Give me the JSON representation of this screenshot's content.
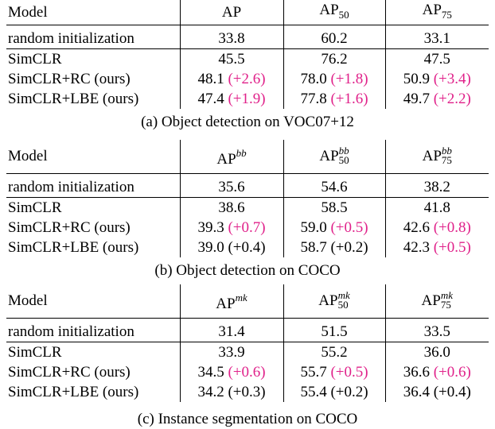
{
  "tables": [
    {
      "header": {
        "model": "Model",
        "c1": "AP",
        "c2_base": "AP",
        "c2_sub": "50",
        "c3_base": "AP",
        "c3_sub": "75"
      },
      "rows": [
        {
          "model": "random initialization",
          "c1": "33.8",
          "c1d": "",
          "c2": "60.2",
          "c2d": "",
          "c3": "33.1",
          "c3d": ""
        },
        {
          "model": "SimCLR",
          "c1": "45.5",
          "c1d": "",
          "c2": "76.2",
          "c2d": "",
          "c3": "47.5",
          "c3d": ""
        },
        {
          "model": "SimCLR+RC (ours)",
          "c1": "48.1",
          "c1d": "(+2.6)",
          "c2": "78.0",
          "c2d": "(+1.8)",
          "c3": "50.9",
          "c3d": "(+3.4)"
        },
        {
          "model": "SimCLR+LBE (ours)",
          "c1": "47.4",
          "c1d": "(+1.9)",
          "c2": "77.8",
          "c2d": "(+1.6)",
          "c3": "49.7",
          "c3d": "(+2.2)"
        }
      ],
      "caption": "(a) Object detection on VOC07+12"
    },
    {
      "header": {
        "model": "Model",
        "c1_base": "AP",
        "c1_sup": "bb",
        "c2_base": "AP",
        "c2_sup": "bb",
        "c2_sub": "50",
        "c3_base": "AP",
        "c3_sup": "bb",
        "c3_sub": "75"
      },
      "rows": [
        {
          "model": "random initialization",
          "c1": "35.6",
          "c1d": "",
          "c2": "54.6",
          "c2d": "",
          "c3": "38.2",
          "c3d": ""
        },
        {
          "model": "SimCLR",
          "c1": "38.6",
          "c1d": "",
          "c2": "58.5",
          "c2d": "",
          "c3": "41.8",
          "c3d": ""
        },
        {
          "model": "SimCLR+RC (ours)",
          "c1": "39.3",
          "c1d": "(+0.7)",
          "c2": "59.0",
          "c2d": "(+0.5)",
          "c3": "42.6",
          "c3d": "(+0.8)"
        },
        {
          "model": "SimCLR+LBE (ours)",
          "c1": "39.0",
          "c1d": "(+0.4)",
          "c2": "58.7",
          "c2d": "(+0.2)",
          "c3": "42.3",
          "c3d": "(+0.5)"
        }
      ],
      "caption": "(b) Object detection on COCO"
    },
    {
      "header": {
        "model": "Model",
        "c1_base": "AP",
        "c1_sup": "mk",
        "c2_base": "AP",
        "c2_sup": "mk",
        "c2_sub": "50",
        "c3_base": "AP",
        "c3_sup": "mk",
        "c3_sub": "75"
      },
      "rows": [
        {
          "model": "random initialization",
          "c1": "31.4",
          "c1d": "",
          "c2": "51.5",
          "c2d": "",
          "c3": "33.5",
          "c3d": ""
        },
        {
          "model": "SimCLR",
          "c1": "33.9",
          "c1d": "",
          "c2": "55.2",
          "c2d": "",
          "c3": "36.0",
          "c3d": ""
        },
        {
          "model": "SimCLR+RC (ours)",
          "c1": "34.5",
          "c1d": "(+0.6)",
          "c2": "55.7",
          "c2d": "(+0.5)",
          "c3": "36.6",
          "c3d": "(+0.6)"
        },
        {
          "model": "SimCLR+LBE (ours)",
          "c1": "34.2",
          "c1d": "(+0.3)",
          "c2": "55.4",
          "c2d": "(+0.2)",
          "c3": "36.4",
          "c3d": "(+0.4)"
        }
      ],
      "caption": "(c) Instance segmentation on COCO"
    }
  ],
  "colors": {
    "highlight": "#e0218a",
    "plain": "#000000"
  },
  "highlighted": {
    "t0": {
      "r2": [
        "c1d",
        "c2d",
        "c3d"
      ],
      "r3": [
        "c1d",
        "c2d",
        "c3d"
      ]
    },
    "t1": {
      "r2": [
        "c1d",
        "c2d",
        "c3d"
      ],
      "r3": [
        "c3d"
      ]
    },
    "t2": {
      "r2": [
        "c1d",
        "c2d",
        "c3d"
      ],
      "r3": []
    }
  }
}
